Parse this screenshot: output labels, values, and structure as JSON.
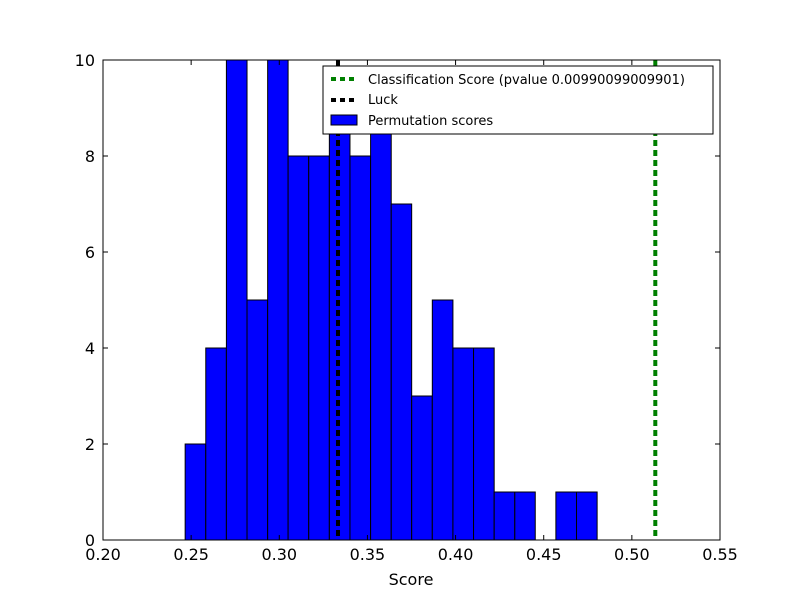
{
  "chart_data": {
    "type": "bar",
    "title": "",
    "xlabel": "Score",
    "ylabel": "",
    "xlim": [
      0.2,
      0.55
    ],
    "ylim": [
      0,
      10
    ],
    "xticks": [
      0.2,
      0.25,
      0.3,
      0.35,
      0.4,
      0.45,
      0.5,
      0.55
    ],
    "xtick_labels": [
      "0.20",
      "0.25",
      "0.30",
      "0.35",
      "0.40",
      "0.45",
      "0.50",
      "0.55"
    ],
    "yticks": [
      0,
      2,
      4,
      6,
      8,
      10
    ],
    "ytick_labels": [
      "0",
      "2",
      "4",
      "6",
      "8",
      "10"
    ],
    "grid": false,
    "legend_position": "top-right",
    "bin_edges": [
      0.2466,
      0.2583,
      0.27,
      0.2817,
      0.2934,
      0.305,
      0.3167,
      0.3284,
      0.3401,
      0.3518,
      0.3635,
      0.3751,
      0.3868,
      0.3985,
      0.4102,
      0.4219,
      0.4336,
      0.4452,
      0.4569,
      0.4686,
      0.4803
    ],
    "series": [
      {
        "name": "Permutation scores",
        "kind": "histogram",
        "color": "#0000ff",
        "values": [
          2,
          4,
          10,
          5,
          10,
          8,
          8,
          9,
          8,
          9,
          7,
          3,
          5,
          4,
          4,
          1,
          1,
          0,
          1,
          1
        ]
      },
      {
        "name": "Classification Score (pvalue 0.00990099009901)",
        "kind": "vline",
        "color": "#008000",
        "x": 0.5133,
        "style": "dashed"
      },
      {
        "name": "Luck",
        "kind": "vline",
        "color": "#000000",
        "x": 0.3333,
        "style": "dashed"
      }
    ]
  }
}
